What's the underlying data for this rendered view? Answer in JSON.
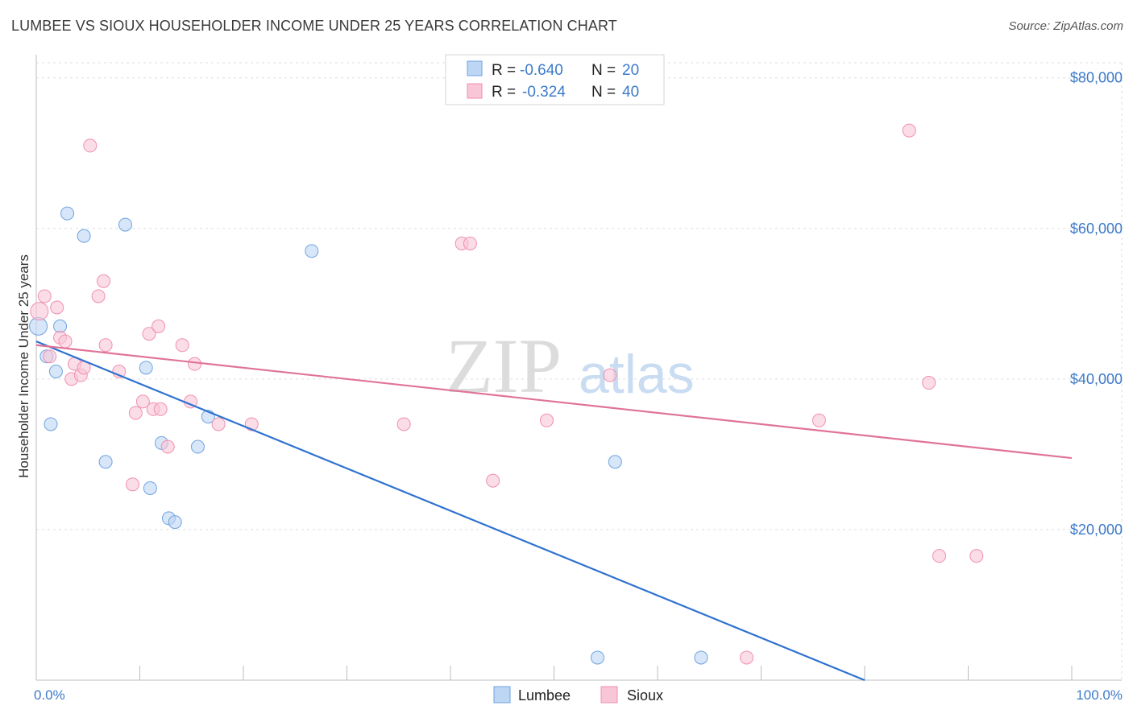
{
  "chart_data": {
    "type": "scatter",
    "title": "LUMBEE VS SIOUX HOUSEHOLDER INCOME UNDER 25 YEARS CORRELATION CHART",
    "source": "Source: ZipAtlas.com",
    "xlabel": "",
    "ylabel": "Householder Income Under 25 years",
    "xlim": [
      0,
      100
    ],
    "ylim": [
      0,
      82000
    ],
    "x_tick_labels": [
      "0.0%",
      "100.0%"
    ],
    "y_ticks": [
      20000,
      40000,
      60000,
      80000
    ],
    "y_tick_labels": [
      "$20,000",
      "$40,000",
      "$60,000",
      "$80,000"
    ],
    "grid": true,
    "watermark": {
      "zip": "ZIP",
      "atlas": "atlas"
    },
    "legend": {
      "r_label": "R =",
      "n_label": "N =",
      "entries": [
        {
          "name": "Lumbee",
          "r": "-0.640",
          "n": "20"
        },
        {
          "name": "Sioux",
          "r": "-0.324",
          "n": "40"
        }
      ]
    },
    "series": [
      {
        "name": "Lumbee",
        "color": "#6fa3e0",
        "fill": "#bcd6f3",
        "line_color": "#2f72d0",
        "trend": [
          [
            0,
            45000
          ],
          [
            80,
            0
          ]
        ],
        "points": [
          [
            0.2,
            47000
          ],
          [
            1,
            43000
          ],
          [
            1.4,
            34000
          ],
          [
            1.9,
            41000
          ],
          [
            2.3,
            47000
          ],
          [
            3,
            62000
          ],
          [
            4.6,
            59000
          ],
          [
            6.7,
            29000
          ],
          [
            8.6,
            60500
          ],
          [
            10.6,
            41500
          ],
          [
            11,
            25500
          ],
          [
            12.1,
            31500
          ],
          [
            12.8,
            21500
          ],
          [
            13.4,
            21000
          ],
          [
            15.6,
            31000
          ],
          [
            16.6,
            35000
          ],
          [
            26.6,
            57000
          ],
          [
            54.2,
            3000
          ],
          [
            55.9,
            29000
          ],
          [
            64.2,
            3000
          ]
        ]
      },
      {
        "name": "Sioux",
        "color": "#f08fb0",
        "fill": "#f8c6d7",
        "line_color": "#e0739a",
        "trend": [
          [
            0,
            44500
          ],
          [
            100,
            29500
          ]
        ],
        "points": [
          [
            0.3,
            49000
          ],
          [
            0.8,
            51000
          ],
          [
            1.3,
            43000
          ],
          [
            2,
            49500
          ],
          [
            2.3,
            45500
          ],
          [
            2.8,
            45000
          ],
          [
            3.4,
            40000
          ],
          [
            3.7,
            42000
          ],
          [
            4.3,
            40500
          ],
          [
            4.6,
            41500
          ],
          [
            5.2,
            71000
          ],
          [
            6,
            51000
          ],
          [
            6.5,
            53000
          ],
          [
            6.7,
            44500
          ],
          [
            8,
            41000
          ],
          [
            9.3,
            26000
          ],
          [
            9.6,
            35500
          ],
          [
            10.3,
            37000
          ],
          [
            10.9,
            46000
          ],
          [
            11.3,
            36000
          ],
          [
            11.8,
            47000
          ],
          [
            12,
            36000
          ],
          [
            12.7,
            31000
          ],
          [
            14.1,
            44500
          ],
          [
            14.9,
            37000
          ],
          [
            15.3,
            42000
          ],
          [
            17.6,
            34000
          ],
          [
            20.8,
            34000
          ],
          [
            35.5,
            34000
          ],
          [
            41.1,
            58000
          ],
          [
            41.9,
            58000
          ],
          [
            44.1,
            26500
          ],
          [
            49.3,
            34500
          ],
          [
            55.4,
            40500
          ],
          [
            68.6,
            3000
          ],
          [
            75.6,
            34500
          ],
          [
            84.3,
            73000
          ],
          [
            86.2,
            39500
          ],
          [
            87.2,
            16500
          ],
          [
            90.8,
            16500
          ]
        ]
      }
    ]
  }
}
